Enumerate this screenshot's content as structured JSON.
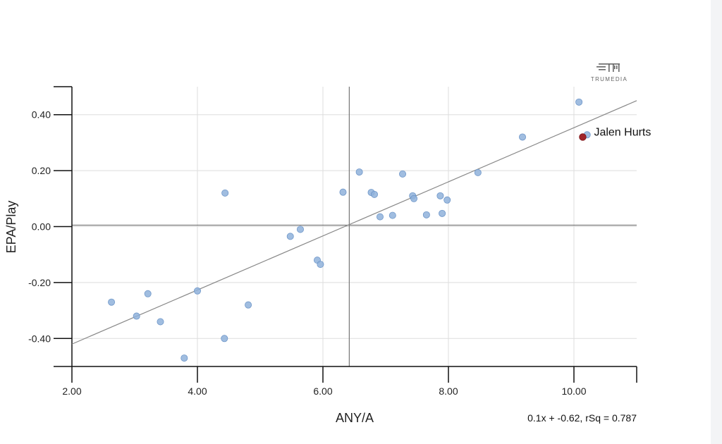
{
  "logo": {
    "text": "TRUMEDIA"
  },
  "colors": {
    "point": "#8fb2db",
    "point_stroke": "#6f97c9",
    "highlight": "#a0252a",
    "grid": "#dddddd",
    "axis": "#111111",
    "regression": "#888888",
    "mean": "#777777"
  },
  "chart_data": {
    "type": "scatter",
    "title": "",
    "xlabel": "ANY/A",
    "ylabel": "EPA/Play",
    "xlim": [
      2.0,
      11.0
    ],
    "ylim": [
      -0.5,
      0.5
    ],
    "x_ticks": [
      "2.00",
      "4.00",
      "6.00",
      "8.00",
      "10.00"
    ],
    "y_ticks": [
      "0.40",
      "0.20",
      "0.00",
      "-0.20",
      "-0.40"
    ],
    "grid": true,
    "mean_lines": {
      "x": 6.42,
      "y": 0.005
    },
    "regression": {
      "slope": 0.1,
      "intercept": -0.62,
      "label": "0.1x + -0.62, rSq = 0.787",
      "x_range": [
        2.0,
        11.0
      ],
      "y_range": [
        -0.42,
        0.45
      ]
    },
    "points": [
      {
        "x": 2.63,
        "y": -0.27
      },
      {
        "x": 3.03,
        "y": -0.32
      },
      {
        "x": 3.21,
        "y": -0.24
      },
      {
        "x": 3.41,
        "y": -0.34
      },
      {
        "x": 3.79,
        "y": -0.47
      },
      {
        "x": 4.0,
        "y": -0.23
      },
      {
        "x": 4.43,
        "y": -0.4
      },
      {
        "x": 4.44,
        "y": 0.12
      },
      {
        "x": 4.81,
        "y": -0.28
      },
      {
        "x": 5.48,
        "y": -0.035
      },
      {
        "x": 5.64,
        "y": -0.01
      },
      {
        "x": 5.91,
        "y": -0.12
      },
      {
        "x": 5.96,
        "y": -0.135
      },
      {
        "x": 6.32,
        "y": 0.123
      },
      {
        "x": 6.58,
        "y": 0.195
      },
      {
        "x": 6.77,
        "y": 0.122
      },
      {
        "x": 6.82,
        "y": 0.115
      },
      {
        "x": 6.91,
        "y": 0.035
      },
      {
        "x": 7.11,
        "y": 0.04
      },
      {
        "x": 7.27,
        "y": 0.188
      },
      {
        "x": 7.43,
        "y": 0.11
      },
      {
        "x": 7.45,
        "y": 0.1
      },
      {
        "x": 7.65,
        "y": 0.042
      },
      {
        "x": 7.87,
        "y": 0.11
      },
      {
        "x": 7.9,
        "y": 0.047
      },
      {
        "x": 7.98,
        "y": 0.095
      },
      {
        "x": 8.47,
        "y": 0.193
      },
      {
        "x": 9.18,
        "y": 0.32
      },
      {
        "x": 10.08,
        "y": 0.445
      },
      {
        "x": 10.21,
        "y": 0.328
      }
    ],
    "highlight": {
      "x": 10.14,
      "y": 0.32,
      "label": "Jalen Hurts"
    }
  }
}
